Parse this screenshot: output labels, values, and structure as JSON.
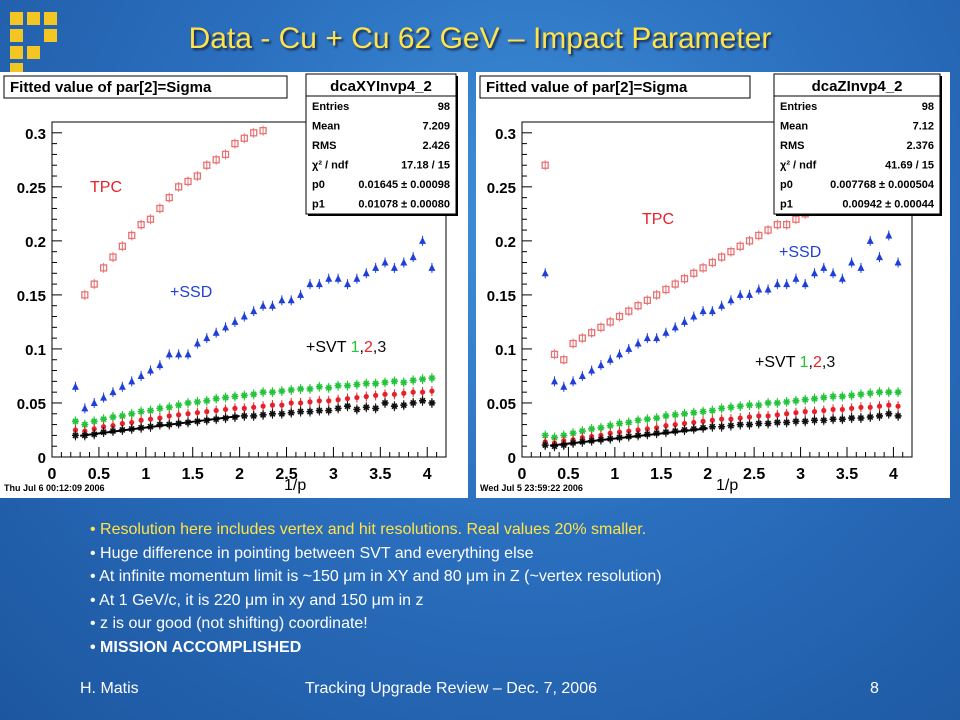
{
  "slide": {
    "title": "Data - Cu + Cu 62 GeV – Impact Parameter",
    "bullets": [
      "Resolution here includes vertex and hit resolutions. Real values 20% smaller.",
      "Huge difference in pointing between SVT and everything else",
      "At infinite momentum limit is ~150 μm in XY and 80 μm in Z (~vertex resolution)",
      "At 1 GeV/c, it is 220 μm in xy and 150 μm in z",
      "z is our good (not shifting) coordinate!",
      "MISSION ACCOMPLISHED"
    ],
    "footer": {
      "author": "H. Matis",
      "event": "Tracking Upgrade Review – Dec. 7, 2006",
      "page": "8"
    },
    "colors": {
      "title": "#ffe34a",
      "highlight_bullet": "#ffe34a"
    }
  },
  "chart_data": [
    {
      "type": "scatter",
      "panel_title": "Fitted value of par[2]=Sigma",
      "xlabel": "1/p",
      "xlim": [
        0,
        4.2
      ],
      "ylim": [
        0,
        0.31
      ],
      "xticks": [
        "0",
        "0.5",
        "1",
        "1.5",
        "2",
        "2.5",
        "3",
        "3.5",
        "4"
      ],
      "yticks": [
        "0",
        "0.05",
        "0.1",
        "0.15",
        "0.2",
        "0.25",
        "0.3"
      ],
      "timestamp": "Thu Jul  6 00:12:09 2006",
      "stats": {
        "name": "dcaXYInvp4_2",
        "rows": [
          [
            "Entries",
            "98"
          ],
          [
            "Mean",
            "7.209"
          ],
          [
            "RMS",
            "2.426"
          ],
          [
            "χ² / ndf",
            "17.18 / 15"
          ],
          [
            "p0",
            "0.01645 ± 0.00098"
          ],
          [
            "p1",
            "0.01078 ± 0.00080"
          ]
        ]
      },
      "labels": {
        "tpc": "TPC",
        "ssd": "+SSD",
        "svt": "+SVT ",
        "svt_1": "1",
        "svt_2": "2",
        "svt_3": "3"
      },
      "fit_line": {
        "x": [
          0.3,
          2.0
        ],
        "y": [
          0.0197,
          0.038
        ]
      },
      "series": [
        {
          "name": "TPC",
          "color": "#e87272",
          "marker": "open-square",
          "x": [
            0.35,
            0.45,
            0.55,
            0.65,
            0.75,
            0.85,
            0.95,
            1.05,
            1.15,
            1.25,
            1.35,
            1.45,
            1.55,
            1.65,
            1.75,
            1.85,
            1.95,
            2.05,
            2.15,
            2.25
          ],
          "y": [
            0.15,
            0.16,
            0.175,
            0.185,
            0.195,
            0.205,
            0.215,
            0.22,
            0.23,
            0.24,
            0.25,
            0.255,
            0.26,
            0.27,
            0.275,
            0.28,
            0.29,
            0.295,
            0.3,
            0.302
          ]
        },
        {
          "name": "+SSD",
          "color": "#1f3fd8",
          "marker": "triangle",
          "x": [
            0.25,
            0.35,
            0.45,
            0.55,
            0.65,
            0.75,
            0.85,
            0.95,
            1.05,
            1.15,
            1.25,
            1.35,
            1.45,
            1.55,
            1.65,
            1.75,
            1.85,
            1.95,
            2.05,
            2.15,
            2.25,
            2.35,
            2.45,
            2.55,
            2.65,
            2.75,
            2.85,
            2.95,
            3.05,
            3.15,
            3.25,
            3.35,
            3.45,
            3.55,
            3.65,
            3.75,
            3.85,
            3.95,
            4.05
          ],
          "y": [
            0.065,
            0.045,
            0.05,
            0.055,
            0.06,
            0.065,
            0.07,
            0.075,
            0.08,
            0.085,
            0.095,
            0.095,
            0.095,
            0.105,
            0.11,
            0.115,
            0.12,
            0.125,
            0.13,
            0.135,
            0.14,
            0.14,
            0.145,
            0.145,
            0.15,
            0.16,
            0.16,
            0.165,
            0.165,
            0.16,
            0.165,
            0.17,
            0.175,
            0.18,
            0.175,
            0.18,
            0.185,
            0.2,
            0.175
          ]
        },
        {
          "name": "+SVT green",
          "color": "#22c43a",
          "marker": "star",
          "x": [
            0.25,
            0.35,
            0.45,
            0.55,
            0.65,
            0.75,
            0.85,
            0.95,
            1.05,
            1.15,
            1.25,
            1.35,
            1.45,
            1.55,
            1.65,
            1.75,
            1.85,
            1.95,
            2.05,
            2.15,
            2.25,
            2.35,
            2.45,
            2.55,
            2.65,
            2.75,
            2.85,
            2.95,
            3.05,
            3.15,
            3.25,
            3.35,
            3.45,
            3.55,
            3.65,
            3.75,
            3.85,
            3.95,
            4.05
          ],
          "y": [
            0.033,
            0.03,
            0.033,
            0.035,
            0.037,
            0.038,
            0.04,
            0.042,
            0.043,
            0.045,
            0.046,
            0.048,
            0.05,
            0.051,
            0.052,
            0.054,
            0.055,
            0.056,
            0.057,
            0.058,
            0.06,
            0.06,
            0.061,
            0.062,
            0.063,
            0.063,
            0.065,
            0.064,
            0.066,
            0.066,
            0.067,
            0.068,
            0.068,
            0.069,
            0.07,
            0.069,
            0.071,
            0.072,
            0.073
          ]
        },
        {
          "name": "+SVT red",
          "color": "#e8202a",
          "marker": "dot",
          "x": [
            0.25,
            0.35,
            0.45,
            0.55,
            0.65,
            0.75,
            0.85,
            0.95,
            1.05,
            1.15,
            1.25,
            1.35,
            1.45,
            1.55,
            1.65,
            1.75,
            1.85,
            1.95,
            2.05,
            2.15,
            2.25,
            2.35,
            2.45,
            2.55,
            2.65,
            2.75,
            2.85,
            2.95,
            3.05,
            3.15,
            3.25,
            3.35,
            3.45,
            3.55,
            3.65,
            3.75,
            3.85,
            3.95,
            4.05
          ],
          "y": [
            0.025,
            0.024,
            0.026,
            0.028,
            0.029,
            0.031,
            0.032,
            0.034,
            0.035,
            0.036,
            0.038,
            0.039,
            0.04,
            0.041,
            0.042,
            0.043,
            0.044,
            0.045,
            0.045,
            0.046,
            0.047,
            0.048,
            0.048,
            0.05,
            0.05,
            0.051,
            0.052,
            0.052,
            0.053,
            0.054,
            0.055,
            0.056,
            0.057,
            0.058,
            0.058,
            0.059,
            0.06,
            0.06,
            0.061
          ]
        },
        {
          "name": "+SVT black",
          "color": "#111111",
          "marker": "star",
          "x": [
            0.25,
            0.35,
            0.45,
            0.55,
            0.65,
            0.75,
            0.85,
            0.95,
            1.05,
            1.15,
            1.25,
            1.35,
            1.45,
            1.55,
            1.65,
            1.75,
            1.85,
            1.95,
            2.05,
            2.15,
            2.25,
            2.35,
            2.45,
            2.55,
            2.65,
            2.75,
            2.85,
            2.95,
            3.05,
            3.15,
            3.25,
            3.35,
            3.45,
            3.55,
            3.65,
            3.75,
            3.85,
            3.95,
            4.05
          ],
          "y": [
            0.02,
            0.02,
            0.021,
            0.023,
            0.024,
            0.025,
            0.026,
            0.027,
            0.028,
            0.03,
            0.03,
            0.031,
            0.032,
            0.033,
            0.034,
            0.035,
            0.036,
            0.037,
            0.038,
            0.038,
            0.039,
            0.04,
            0.04,
            0.041,
            0.042,
            0.042,
            0.043,
            0.043,
            0.045,
            0.047,
            0.044,
            0.046,
            0.045,
            0.05,
            0.047,
            0.048,
            0.05,
            0.052,
            0.05
          ]
        }
      ]
    },
    {
      "type": "scatter",
      "panel_title": "Fitted value of par[2]=Sigma",
      "xlabel": "1/p",
      "xlim": [
        0,
        4.2
      ],
      "ylim": [
        0,
        0.31
      ],
      "xticks": [
        "0",
        "0.5",
        "1",
        "1.5",
        "2",
        "2.5",
        "3",
        "3.5",
        "4"
      ],
      "yticks": [
        "0",
        "0.05",
        "0.1",
        "0.15",
        "0.2",
        "0.25",
        "0.3"
      ],
      "timestamp": "Wed Jul  5 23:59:22 2006",
      "stats": {
        "name": "dcaZInvp4_2",
        "rows": [
          [
            "Entries",
            "98"
          ],
          [
            "Mean",
            "7.12"
          ],
          [
            "RMS",
            "2.376"
          ],
          [
            "χ² / ndf",
            "41.69 / 15"
          ],
          [
            "p0",
            "0.007768 ± 0.000504"
          ],
          [
            "p1",
            "0.00942 ± 0.00044"
          ]
        ]
      },
      "labels": {
        "tpc": "TPC",
        "ssd": "+SSD",
        "svt": "+SVT ",
        "svt_1": "1",
        "svt_2": "2",
        "svt_3": "3"
      },
      "fit_line": {
        "x": [
          0.3,
          2.0
        ],
        "y": [
          0.0105,
          0.0265
        ]
      },
      "series": [
        {
          "name": "TPC",
          "color": "#e87272",
          "marker": "open-square",
          "x": [
            0.25,
            0.35,
            0.45,
            0.55,
            0.65,
            0.75,
            0.85,
            0.95,
            1.05,
            1.15,
            1.25,
            1.35,
            1.45,
            1.55,
            1.65,
            1.75,
            1.85,
            1.95,
            2.05,
            2.15,
            2.25,
            2.35,
            2.45,
            2.55,
            2.65,
            2.75,
            2.85,
            2.95,
            3.05,
            3.15,
            3.25,
            3.35
          ],
          "y": [
            0.27,
            0.095,
            0.09,
            0.105,
            0.11,
            0.115,
            0.12,
            0.125,
            0.13,
            0.135,
            0.14,
            0.145,
            0.15,
            0.155,
            0.16,
            0.165,
            0.17,
            0.175,
            0.18,
            0.185,
            0.19,
            0.195,
            0.2,
            0.205,
            0.21,
            0.215,
            0.215,
            0.22,
            0.225,
            0.23,
            0.235,
            0.24
          ]
        },
        {
          "name": "+SSD",
          "color": "#1f3fd8",
          "marker": "triangle",
          "x": [
            0.25,
            0.35,
            0.45,
            0.55,
            0.65,
            0.75,
            0.85,
            0.95,
            1.05,
            1.15,
            1.25,
            1.35,
            1.45,
            1.55,
            1.65,
            1.75,
            1.85,
            1.95,
            2.05,
            2.15,
            2.25,
            2.35,
            2.45,
            2.55,
            2.65,
            2.75,
            2.85,
            2.95,
            3.05,
            3.15,
            3.25,
            3.35,
            3.45,
            3.55,
            3.65,
            3.75,
            3.85,
            3.95,
            4.05
          ],
          "y": [
            0.17,
            0.07,
            0.065,
            0.07,
            0.075,
            0.08,
            0.085,
            0.09,
            0.095,
            0.1,
            0.105,
            0.11,
            0.11,
            0.115,
            0.12,
            0.125,
            0.13,
            0.135,
            0.135,
            0.14,
            0.145,
            0.15,
            0.15,
            0.155,
            0.155,
            0.16,
            0.16,
            0.165,
            0.16,
            0.17,
            0.175,
            0.17,
            0.165,
            0.18,
            0.175,
            0.2,
            0.185,
            0.205,
            0.18
          ]
        },
        {
          "name": "+SVT green",
          "color": "#22c43a",
          "marker": "star",
          "x": [
            0.25,
            0.35,
            0.45,
            0.55,
            0.65,
            0.75,
            0.85,
            0.95,
            1.05,
            1.15,
            1.25,
            1.35,
            1.45,
            1.55,
            1.65,
            1.75,
            1.85,
            1.95,
            2.05,
            2.15,
            2.25,
            2.35,
            2.45,
            2.55,
            2.65,
            2.75,
            2.85,
            2.95,
            3.05,
            3.15,
            3.25,
            3.35,
            3.45,
            3.55,
            3.65,
            3.75,
            3.85,
            3.95,
            4.05
          ],
          "y": [
            0.02,
            0.018,
            0.02,
            0.022,
            0.024,
            0.026,
            0.027,
            0.029,
            0.031,
            0.032,
            0.034,
            0.035,
            0.036,
            0.038,
            0.039,
            0.04,
            0.041,
            0.042,
            0.043,
            0.045,
            0.046,
            0.047,
            0.048,
            0.048,
            0.05,
            0.05,
            0.051,
            0.052,
            0.053,
            0.054,
            0.055,
            0.056,
            0.056,
            0.057,
            0.058,
            0.059,
            0.06,
            0.06,
            0.06
          ]
        },
        {
          "name": "+SVT red",
          "color": "#e8202a",
          "marker": "dot",
          "x": [
            0.25,
            0.35,
            0.45,
            0.55,
            0.65,
            0.75,
            0.85,
            0.95,
            1.05,
            1.15,
            1.25,
            1.35,
            1.45,
            1.55,
            1.65,
            1.75,
            1.85,
            1.95,
            2.05,
            2.15,
            2.25,
            2.35,
            2.45,
            2.55,
            2.65,
            2.75,
            2.85,
            2.95,
            3.05,
            3.15,
            3.25,
            3.35,
            3.45,
            3.55,
            3.65,
            3.75,
            3.85,
            3.95,
            4.05
          ],
          "y": [
            0.014,
            0.013,
            0.015,
            0.016,
            0.018,
            0.019,
            0.02,
            0.022,
            0.023,
            0.024,
            0.025,
            0.026,
            0.027,
            0.029,
            0.03,
            0.031,
            0.032,
            0.033,
            0.034,
            0.035,
            0.035,
            0.036,
            0.037,
            0.038,
            0.038,
            0.039,
            0.04,
            0.041,
            0.042,
            0.042,
            0.043,
            0.044,
            0.044,
            0.045,
            0.046,
            0.046,
            0.047,
            0.048,
            0.047
          ]
        },
        {
          "name": "+SVT black",
          "color": "#111111",
          "marker": "star",
          "x": [
            0.25,
            0.35,
            0.45,
            0.55,
            0.65,
            0.75,
            0.85,
            0.95,
            1.05,
            1.15,
            1.25,
            1.35,
            1.45,
            1.55,
            1.65,
            1.75,
            1.85,
            1.95,
            2.05,
            2.15,
            2.25,
            2.35,
            2.45,
            2.55,
            2.65,
            2.75,
            2.85,
            2.95,
            3.05,
            3.15,
            3.25,
            3.35,
            3.45,
            3.55,
            3.65,
            3.75,
            3.85,
            3.95,
            4.05
          ],
          "y": [
            0.011,
            0.01,
            0.011,
            0.013,
            0.014,
            0.015,
            0.016,
            0.017,
            0.018,
            0.019,
            0.02,
            0.021,
            0.022,
            0.023,
            0.024,
            0.025,
            0.026,
            0.027,
            0.028,
            0.028,
            0.029,
            0.03,
            0.03,
            0.031,
            0.031,
            0.032,
            0.032,
            0.033,
            0.033,
            0.034,
            0.034,
            0.035,
            0.035,
            0.036,
            0.036,
            0.037,
            0.038,
            0.04,
            0.038
          ]
        }
      ]
    }
  ]
}
